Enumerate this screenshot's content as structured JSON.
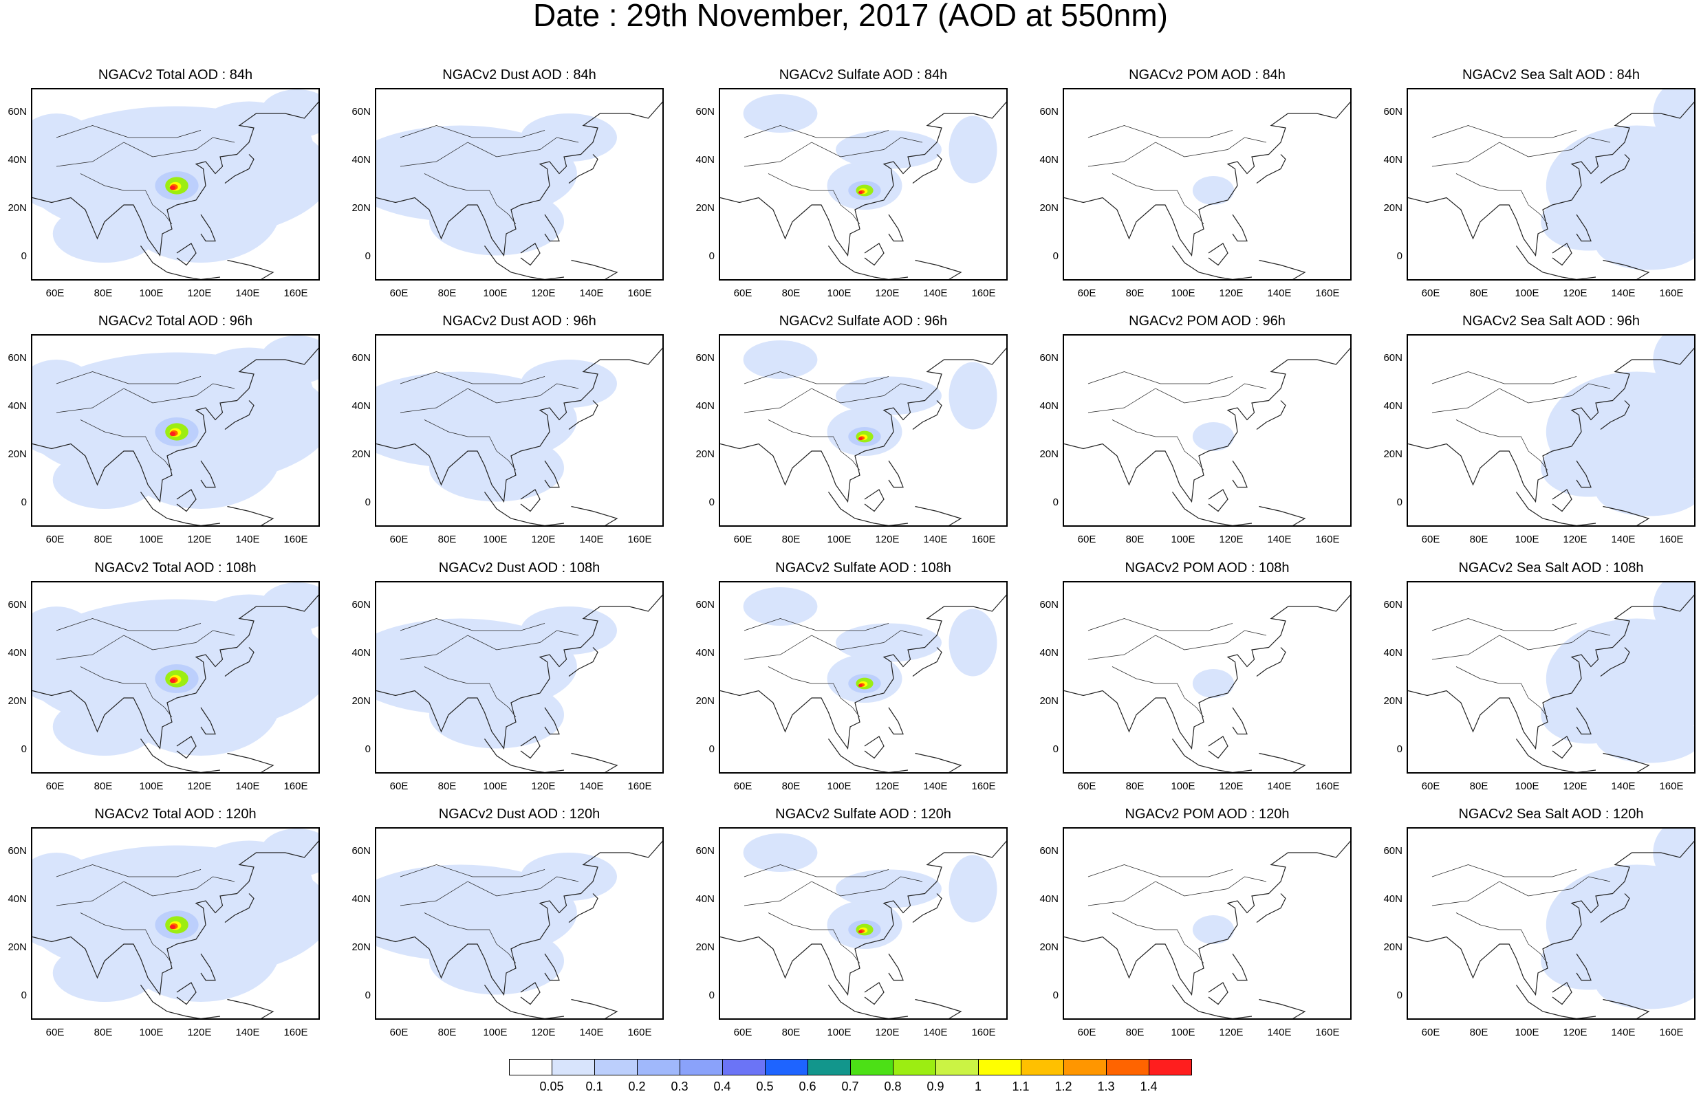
{
  "title": "Date : 29th November, 2017 (AOD at 550nm)",
  "lon_ticks": [
    "60E",
    "80E",
    "100E",
    "120E",
    "140E",
    "160E"
  ],
  "lat_ticks": [
    "60N",
    "40N",
    "20N",
    "0"
  ],
  "rows": [
    {
      "lead": "84h",
      "panels": [
        {
          "title": "NGACv2 Total AOD : 84h",
          "species": "total"
        },
        {
          "title": "NGACv2 Dust AOD : 84h",
          "species": "dust"
        },
        {
          "title": "NGACv2 Sulfate AOD : 84h",
          "species": "sulfate"
        },
        {
          "title": "NGACv2 POM AOD : 84h",
          "species": "pom"
        },
        {
          "title": "NGACv2 Sea Salt AOD : 84h",
          "species": "seasalt"
        }
      ]
    },
    {
      "lead": "96h",
      "panels": [
        {
          "title": "NGACv2 Total AOD : 96h",
          "species": "total"
        },
        {
          "title": "NGACv2 Dust AOD : 96h",
          "species": "dust"
        },
        {
          "title": "NGACv2 Sulfate AOD : 96h",
          "species": "sulfate"
        },
        {
          "title": "NGACv2 POM AOD : 96h",
          "species": "pom"
        },
        {
          "title": "NGACv2 Sea Salt AOD : 96h",
          "species": "seasalt"
        }
      ]
    },
    {
      "lead": "108h",
      "panels": [
        {
          "title": "NGACv2 Total AOD : 108h",
          "species": "total"
        },
        {
          "title": "NGACv2 Dust AOD : 108h",
          "species": "dust"
        },
        {
          "title": "NGACv2 Sulfate AOD : 108h",
          "species": "sulfate"
        },
        {
          "title": "NGACv2 POM AOD : 108h",
          "species": "pom"
        },
        {
          "title": "NGACv2 Sea Salt AOD : 108h",
          "species": "seasalt"
        }
      ]
    },
    {
      "lead": "120h",
      "panels": [
        {
          "title": "NGACv2 Total AOD : 120h",
          "species": "total"
        },
        {
          "title": "NGACv2 Dust AOD : 120h",
          "species": "dust"
        },
        {
          "title": "NGACv2 Sulfate AOD : 120h",
          "species": "sulfate"
        },
        {
          "title": "NGACv2 POM AOD : 120h",
          "species": "pom"
        },
        {
          "title": "NGACv2 Sea Salt  AOD : 120h",
          "species": "seasalt"
        }
      ]
    }
  ],
  "colorbar": {
    "labels": [
      "0.05",
      "0.1",
      "0.2",
      "0.3",
      "0.4",
      "0.5",
      "0.6",
      "0.7",
      "0.8",
      "0.9",
      "1",
      "1.1",
      "1.2",
      "1.3",
      "1.4"
    ],
    "colors": [
      "#ffffff",
      "#d8e4fc",
      "#bccffc",
      "#a0b8fb",
      "#8aa2fa",
      "#6b74f6",
      "#1e64ff",
      "#12968c",
      "#4ce016",
      "#9ced12",
      "#cbf344",
      "#ffff00",
      "#ffc000",
      "#ff9600",
      "#ff6400",
      "#ff1e1e"
    ]
  }
}
